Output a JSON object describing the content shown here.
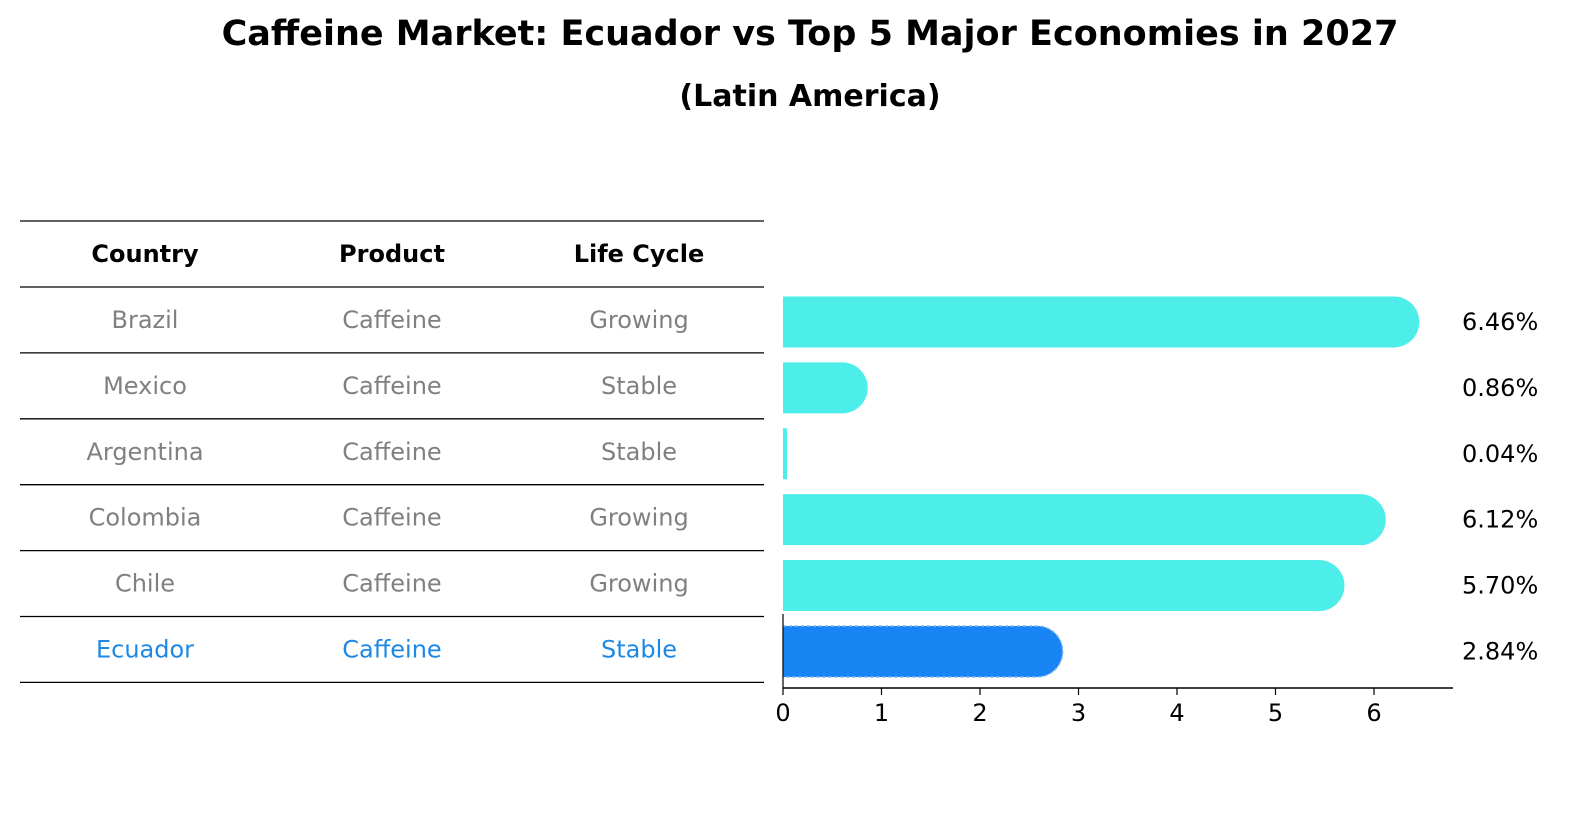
{
  "chart_data": {
    "type": "bar",
    "orientation": "horizontal",
    "title": "Caffeine Market: Ecuador vs Top 5 Major Economies in 2027",
    "subtitle": "(Latin America)",
    "table": {
      "columns": [
        "Country",
        "Product",
        "Life Cycle"
      ],
      "rows": [
        [
          "Brazil",
          "Caffeine",
          "Growing"
        ],
        [
          "Mexico",
          "Caffeine",
          "Stable"
        ],
        [
          "Argentina",
          "Caffeine",
          "Stable"
        ],
        [
          "Colombia",
          "Caffeine",
          "Growing"
        ],
        [
          "Chile",
          "Caffeine",
          "Growing"
        ],
        [
          "Ecuador",
          "Caffeine",
          "Stable"
        ]
      ]
    },
    "categories": [
      "Brazil",
      "Mexico",
      "Argentina",
      "Colombia",
      "Chile",
      "Ecuador"
    ],
    "values": [
      6.46,
      0.86,
      0.04,
      6.12,
      5.7,
      2.84
    ],
    "value_labels": [
      "6.46%",
      "0.86%",
      "0.04%",
      "6.12%",
      "5.70%",
      "2.84%"
    ],
    "highlight": "Ecuador",
    "xticks": [
      "0",
      "1",
      "2",
      "3",
      "4",
      "5",
      "6"
    ],
    "xlim": [
      0,
      6.8
    ],
    "xlabel": "",
    "ylabel": "",
    "grid": false,
    "colors": {
      "bar": "#4deeea",
      "highlight_bar": "#1985f5",
      "row_text": "#808080",
      "highlight_text": "#1e88e5",
      "header_text": "#000000",
      "rule": "#000000"
    }
  }
}
